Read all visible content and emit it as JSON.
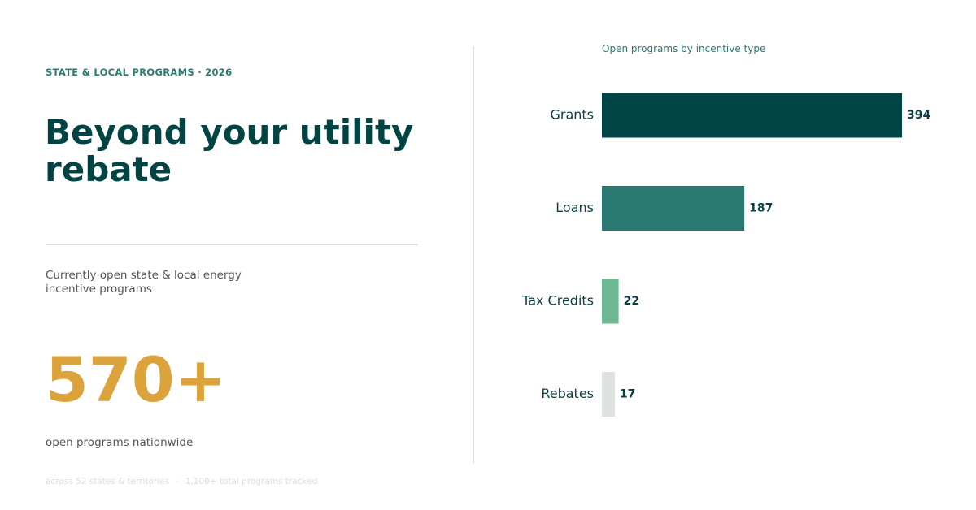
{
  "left_panel": {
    "eyebrow": "STATE & LOCAL PROGRAMS · 2026",
    "headline": "Beyond your utility rebate",
    "description": "Currently open state & local energy incentive programs",
    "big_number": "570+",
    "big_number_label": "open programs nationwide",
    "footnote_states": "across 52 states & territories",
    "footnote_separator": "·",
    "footnote_total": "1,100+ total programs tracked"
  },
  "colors": {
    "grants": "#014546",
    "loans": "#2a7872",
    "tax_credits": "#6db892",
    "rebates": "#dde2de",
    "accent": "#dca23b"
  },
  "chart_data": {
    "type": "bar",
    "orientation": "horizontal",
    "title": "Open programs by incentive type",
    "categories": [
      "Grants",
      "Loans",
      "Tax Credits",
      "Rebates"
    ],
    "values": [
      394,
      187,
      22,
      17
    ],
    "bar_colors": [
      "#014546",
      "#2a7872",
      "#6db892",
      "#dde2de"
    ],
    "xlim": [
      0,
      394
    ],
    "grid": false,
    "legend": "none",
    "data_labels": true
  }
}
